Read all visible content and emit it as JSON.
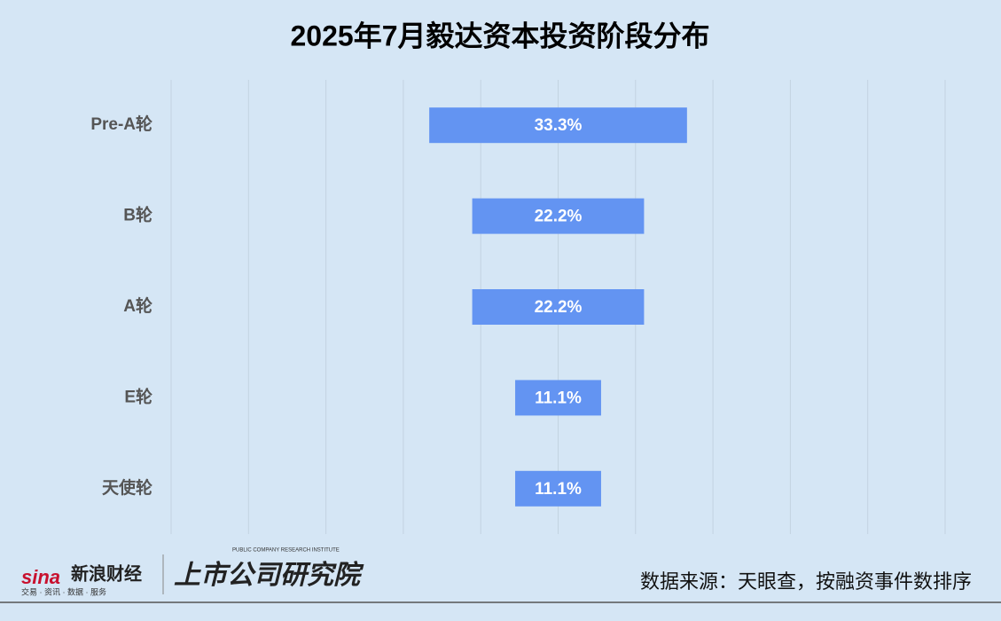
{
  "chart_data": {
    "type": "funnel",
    "title": "2025年7月毅达资本投资阶段分布",
    "categories": [
      "Pre-A轮",
      "B轮",
      "A轮",
      "E轮",
      "天使轮"
    ],
    "values": [
      33.3,
      22.2,
      22.2,
      11.1,
      11.1
    ],
    "value_labels": [
      "33.3%",
      "22.2%",
      "22.2%",
      "11.1%",
      "11.1%"
    ],
    "color": "#6394f2",
    "xlim": [
      -50,
      50
    ],
    "xticks": [
      -50,
      -40,
      -30,
      -20,
      -10,
      0,
      10,
      20,
      30,
      40,
      50
    ],
    "grid": true
  },
  "footer": {
    "brand": "新浪财经",
    "brand_logo": "sina",
    "brand_tagline": "交易 · 资讯 · 数据 · 服务",
    "institute": "上市公司研究院",
    "institute_en": "PUBLIC COMPANY RESEARCH INSTITUTE",
    "source": "数据来源：天眼查，按融资事件数排序"
  }
}
